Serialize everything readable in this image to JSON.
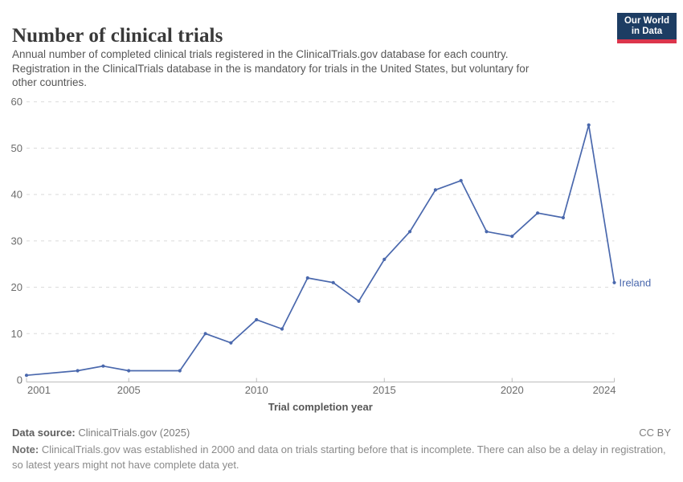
{
  "header": {
    "title": "Number of clinical trials",
    "subtitle_lines": [
      "Annual number of completed clinical trials registered in the ClinicalTrials.gov database for each country.",
      "Registration in the ClinicalTrials database in the is mandatory for trials in the United States, but voluntary for",
      "other countries."
    ],
    "logo": {
      "line1": "Our World",
      "line2": "in Data",
      "bg_color": "#1d3d63",
      "accent_color": "#dc354c"
    }
  },
  "chart_data": {
    "type": "line",
    "title": "Number of clinical trials",
    "xlabel": "Trial completion year",
    "ylabel": "",
    "xlim": [
      2001,
      2024
    ],
    "ylim": [
      0,
      60
    ],
    "x_ticks": [
      2001,
      2005,
      2010,
      2015,
      2020,
      2024
    ],
    "y_ticks": [
      0,
      10,
      20,
      30,
      40,
      50,
      60
    ],
    "grid": "horizontal-dashed",
    "legend_position": "end-of-line-label",
    "series": [
      {
        "name": "Ireland",
        "color": "#4a68ad",
        "points": [
          {
            "year": 2001,
            "value": 1
          },
          {
            "year": 2003,
            "value": 2
          },
          {
            "year": 2004,
            "value": 3
          },
          {
            "year": 2005,
            "value": 2
          },
          {
            "year": 2007,
            "value": 2
          },
          {
            "year": 2008,
            "value": 10
          },
          {
            "year": 2009,
            "value": 8
          },
          {
            "year": 2010,
            "value": 13
          },
          {
            "year": 2011,
            "value": 11
          },
          {
            "year": 2012,
            "value": 22
          },
          {
            "year": 2013,
            "value": 21
          },
          {
            "year": 2014,
            "value": 17
          },
          {
            "year": 2015,
            "value": 26
          },
          {
            "year": 2016,
            "value": 32
          },
          {
            "year": 2017,
            "value": 41
          },
          {
            "year": 2018,
            "value": 43
          },
          {
            "year": 2019,
            "value": 32
          },
          {
            "year": 2020,
            "value": 31
          },
          {
            "year": 2021,
            "value": 36
          },
          {
            "year": 2022,
            "value": 35
          },
          {
            "year": 2023,
            "value": 55
          },
          {
            "year": 2024,
            "value": 21
          }
        ]
      }
    ]
  },
  "footer": {
    "source_label": "Data source:",
    "source_value": "ClinicalTrials.gov (2025)",
    "license": "CC BY",
    "note_label": "Note:",
    "note_line1": "ClinicalTrials.gov was established in 2000 and data on trials starting before that is incomplete. There can also be a delay in registration,",
    "note_line2": "so latest years might not have complete data yet."
  }
}
